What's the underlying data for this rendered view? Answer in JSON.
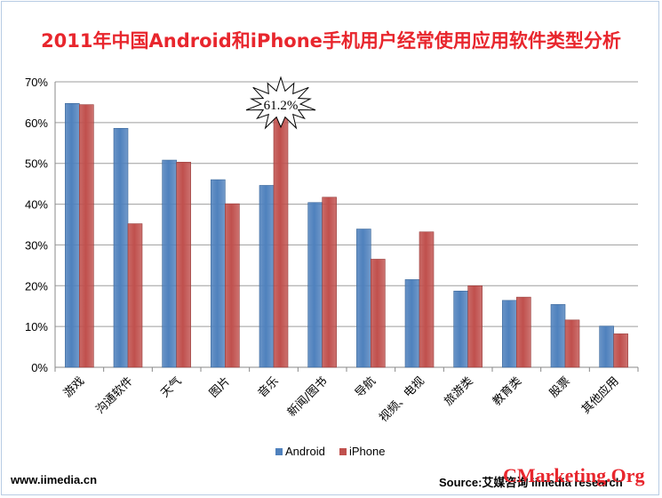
{
  "chart_data": {
    "type": "bar",
    "title": "2011年中国Android和iPhone手机用户经常使用应用软件类型分析",
    "categories": [
      "游戏",
      "沟通软件",
      "天气",
      "图片",
      "音乐",
      "新闻/图书",
      "导航",
      "视频、电视",
      "旅游类",
      "教育类",
      "股票",
      "其他应用"
    ],
    "series": [
      {
        "name": "Android",
        "color": "#4f81bd",
        "values": [
          64.7,
          58.6,
          50.8,
          46.0,
          44.6,
          40.4,
          33.9,
          21.5,
          18.7,
          16.4,
          15.4,
          10.1
        ]
      },
      {
        "name": "iPhone",
        "color": "#c0504d",
        "values": [
          64.4,
          35.2,
          50.3,
          40.1,
          61.2,
          41.7,
          26.5,
          33.2,
          20.0,
          17.2,
          11.6,
          8.2
        ]
      }
    ],
    "yticks": [
      "0%",
      "10%",
      "20%",
      "30%",
      "40%",
      "50%",
      "60%",
      "70%"
    ],
    "ylim": [
      0,
      70
    ],
    "grid": true,
    "legend": "bottom",
    "annotation": "61.2%"
  },
  "footer": {
    "website": "www.iimedia.cn",
    "source": "Source:艾媒咨询 iimedia research",
    "watermark": "CMarketing.Org"
  }
}
